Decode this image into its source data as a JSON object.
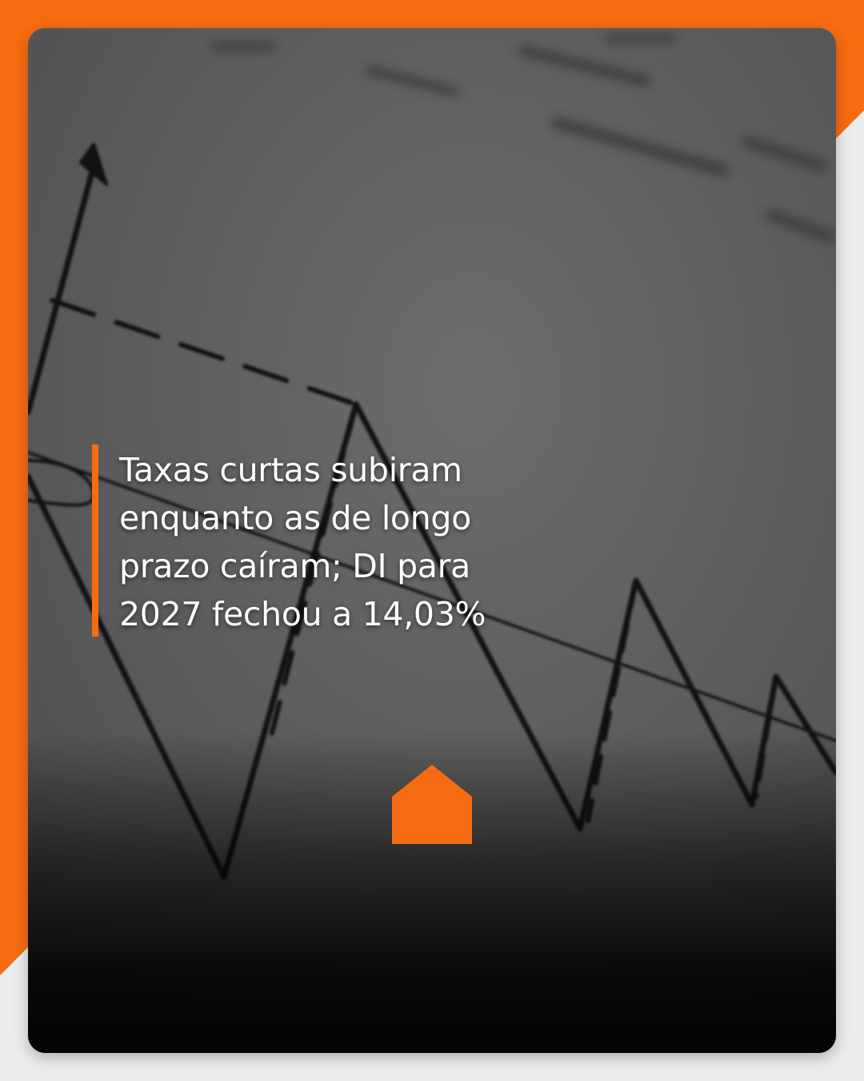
{
  "post": {
    "headline": "Taxas curtas subiram enquanto as de longo prazo caíram; DI para 2027 fechou a 14,03%"
  },
  "brand": {
    "logo_icon": "house-icon",
    "accent_color": "#f76c12"
  }
}
